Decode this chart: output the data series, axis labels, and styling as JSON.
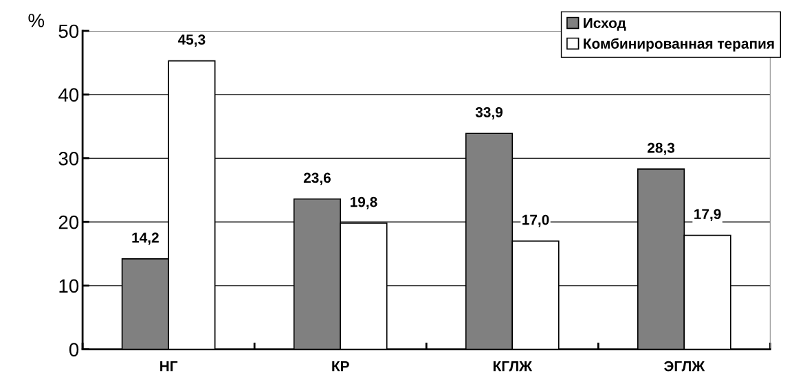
{
  "chart_data": {
    "type": "bar",
    "ylabel": "%",
    "categories": [
      "НГ",
      "КР",
      "КГЛЖ",
      "ЭГЛЖ"
    ],
    "series": [
      {
        "name": "Исход",
        "color": "#808080",
        "values": [
          14.2,
          23.6,
          33.9,
          28.3
        ],
        "value_labels": [
          "14,2",
          "23,6",
          "33,9",
          "28,3"
        ]
      },
      {
        "name": "Комбинированная терапия",
        "color": "#ffffff",
        "values": [
          45.3,
          19.8,
          17.0,
          17.9
        ],
        "value_labels": [
          "45,3",
          "19,8",
          "17,0",
          "17,9"
        ]
      }
    ],
    "ylim": [
      0,
      50
    ],
    "yticks": [
      0,
      10,
      20,
      30,
      40,
      50
    ],
    "grid": "y",
    "legend": "top right"
  }
}
